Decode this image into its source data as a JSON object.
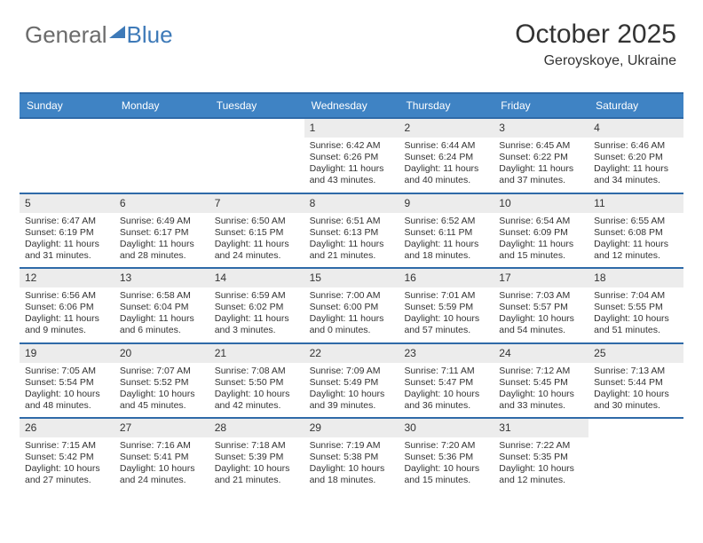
{
  "logo": {
    "part1": "General",
    "part2": "Blue",
    "part2_color": "#3e7ab8",
    "part1_color": "#6b6b6b"
  },
  "header": {
    "title": "October 2025",
    "location": "Geroyskoye, Ukraine"
  },
  "colors": {
    "header_blue": "#3f83c4",
    "border_blue": "#2f6aa8",
    "daynum_bg": "#ececec",
    "text": "#333333"
  },
  "weekdays": [
    "Sunday",
    "Monday",
    "Tuesday",
    "Wednesday",
    "Thursday",
    "Friday",
    "Saturday"
  ],
  "weeks": [
    [
      {
        "num": "",
        "sunrise": "",
        "sunset": "",
        "daylight1": "",
        "daylight2": ""
      },
      {
        "num": "",
        "sunrise": "",
        "sunset": "",
        "daylight1": "",
        "daylight2": ""
      },
      {
        "num": "",
        "sunrise": "",
        "sunset": "",
        "daylight1": "",
        "daylight2": ""
      },
      {
        "num": "1",
        "sunrise": "Sunrise: 6:42 AM",
        "sunset": "Sunset: 6:26 PM",
        "daylight1": "Daylight: 11 hours",
        "daylight2": "and 43 minutes."
      },
      {
        "num": "2",
        "sunrise": "Sunrise: 6:44 AM",
        "sunset": "Sunset: 6:24 PM",
        "daylight1": "Daylight: 11 hours",
        "daylight2": "and 40 minutes."
      },
      {
        "num": "3",
        "sunrise": "Sunrise: 6:45 AM",
        "sunset": "Sunset: 6:22 PM",
        "daylight1": "Daylight: 11 hours",
        "daylight2": "and 37 minutes."
      },
      {
        "num": "4",
        "sunrise": "Sunrise: 6:46 AM",
        "sunset": "Sunset: 6:20 PM",
        "daylight1": "Daylight: 11 hours",
        "daylight2": "and 34 minutes."
      }
    ],
    [
      {
        "num": "5",
        "sunrise": "Sunrise: 6:47 AM",
        "sunset": "Sunset: 6:19 PM",
        "daylight1": "Daylight: 11 hours",
        "daylight2": "and 31 minutes."
      },
      {
        "num": "6",
        "sunrise": "Sunrise: 6:49 AM",
        "sunset": "Sunset: 6:17 PM",
        "daylight1": "Daylight: 11 hours",
        "daylight2": "and 28 minutes."
      },
      {
        "num": "7",
        "sunrise": "Sunrise: 6:50 AM",
        "sunset": "Sunset: 6:15 PM",
        "daylight1": "Daylight: 11 hours",
        "daylight2": "and 24 minutes."
      },
      {
        "num": "8",
        "sunrise": "Sunrise: 6:51 AM",
        "sunset": "Sunset: 6:13 PM",
        "daylight1": "Daylight: 11 hours",
        "daylight2": "and 21 minutes."
      },
      {
        "num": "9",
        "sunrise": "Sunrise: 6:52 AM",
        "sunset": "Sunset: 6:11 PM",
        "daylight1": "Daylight: 11 hours",
        "daylight2": "and 18 minutes."
      },
      {
        "num": "10",
        "sunrise": "Sunrise: 6:54 AM",
        "sunset": "Sunset: 6:09 PM",
        "daylight1": "Daylight: 11 hours",
        "daylight2": "and 15 minutes."
      },
      {
        "num": "11",
        "sunrise": "Sunrise: 6:55 AM",
        "sunset": "Sunset: 6:08 PM",
        "daylight1": "Daylight: 11 hours",
        "daylight2": "and 12 minutes."
      }
    ],
    [
      {
        "num": "12",
        "sunrise": "Sunrise: 6:56 AM",
        "sunset": "Sunset: 6:06 PM",
        "daylight1": "Daylight: 11 hours",
        "daylight2": "and 9 minutes."
      },
      {
        "num": "13",
        "sunrise": "Sunrise: 6:58 AM",
        "sunset": "Sunset: 6:04 PM",
        "daylight1": "Daylight: 11 hours",
        "daylight2": "and 6 minutes."
      },
      {
        "num": "14",
        "sunrise": "Sunrise: 6:59 AM",
        "sunset": "Sunset: 6:02 PM",
        "daylight1": "Daylight: 11 hours",
        "daylight2": "and 3 minutes."
      },
      {
        "num": "15",
        "sunrise": "Sunrise: 7:00 AM",
        "sunset": "Sunset: 6:00 PM",
        "daylight1": "Daylight: 11 hours",
        "daylight2": "and 0 minutes."
      },
      {
        "num": "16",
        "sunrise": "Sunrise: 7:01 AM",
        "sunset": "Sunset: 5:59 PM",
        "daylight1": "Daylight: 10 hours",
        "daylight2": "and 57 minutes."
      },
      {
        "num": "17",
        "sunrise": "Sunrise: 7:03 AM",
        "sunset": "Sunset: 5:57 PM",
        "daylight1": "Daylight: 10 hours",
        "daylight2": "and 54 minutes."
      },
      {
        "num": "18",
        "sunrise": "Sunrise: 7:04 AM",
        "sunset": "Sunset: 5:55 PM",
        "daylight1": "Daylight: 10 hours",
        "daylight2": "and 51 minutes."
      }
    ],
    [
      {
        "num": "19",
        "sunrise": "Sunrise: 7:05 AM",
        "sunset": "Sunset: 5:54 PM",
        "daylight1": "Daylight: 10 hours",
        "daylight2": "and 48 minutes."
      },
      {
        "num": "20",
        "sunrise": "Sunrise: 7:07 AM",
        "sunset": "Sunset: 5:52 PM",
        "daylight1": "Daylight: 10 hours",
        "daylight2": "and 45 minutes."
      },
      {
        "num": "21",
        "sunrise": "Sunrise: 7:08 AM",
        "sunset": "Sunset: 5:50 PM",
        "daylight1": "Daylight: 10 hours",
        "daylight2": "and 42 minutes."
      },
      {
        "num": "22",
        "sunrise": "Sunrise: 7:09 AM",
        "sunset": "Sunset: 5:49 PM",
        "daylight1": "Daylight: 10 hours",
        "daylight2": "and 39 minutes."
      },
      {
        "num": "23",
        "sunrise": "Sunrise: 7:11 AM",
        "sunset": "Sunset: 5:47 PM",
        "daylight1": "Daylight: 10 hours",
        "daylight2": "and 36 minutes."
      },
      {
        "num": "24",
        "sunrise": "Sunrise: 7:12 AM",
        "sunset": "Sunset: 5:45 PM",
        "daylight1": "Daylight: 10 hours",
        "daylight2": "and 33 minutes."
      },
      {
        "num": "25",
        "sunrise": "Sunrise: 7:13 AM",
        "sunset": "Sunset: 5:44 PM",
        "daylight1": "Daylight: 10 hours",
        "daylight2": "and 30 minutes."
      }
    ],
    [
      {
        "num": "26",
        "sunrise": "Sunrise: 7:15 AM",
        "sunset": "Sunset: 5:42 PM",
        "daylight1": "Daylight: 10 hours",
        "daylight2": "and 27 minutes."
      },
      {
        "num": "27",
        "sunrise": "Sunrise: 7:16 AM",
        "sunset": "Sunset: 5:41 PM",
        "daylight1": "Daylight: 10 hours",
        "daylight2": "and 24 minutes."
      },
      {
        "num": "28",
        "sunrise": "Sunrise: 7:18 AM",
        "sunset": "Sunset: 5:39 PM",
        "daylight1": "Daylight: 10 hours",
        "daylight2": "and 21 minutes."
      },
      {
        "num": "29",
        "sunrise": "Sunrise: 7:19 AM",
        "sunset": "Sunset: 5:38 PM",
        "daylight1": "Daylight: 10 hours",
        "daylight2": "and 18 minutes."
      },
      {
        "num": "30",
        "sunrise": "Sunrise: 7:20 AM",
        "sunset": "Sunset: 5:36 PM",
        "daylight1": "Daylight: 10 hours",
        "daylight2": "and 15 minutes."
      },
      {
        "num": "31",
        "sunrise": "Sunrise: 7:22 AM",
        "sunset": "Sunset: 5:35 PM",
        "daylight1": "Daylight: 10 hours",
        "daylight2": "and 12 minutes."
      },
      {
        "num": "",
        "sunrise": "",
        "sunset": "",
        "daylight1": "",
        "daylight2": ""
      }
    ]
  ]
}
